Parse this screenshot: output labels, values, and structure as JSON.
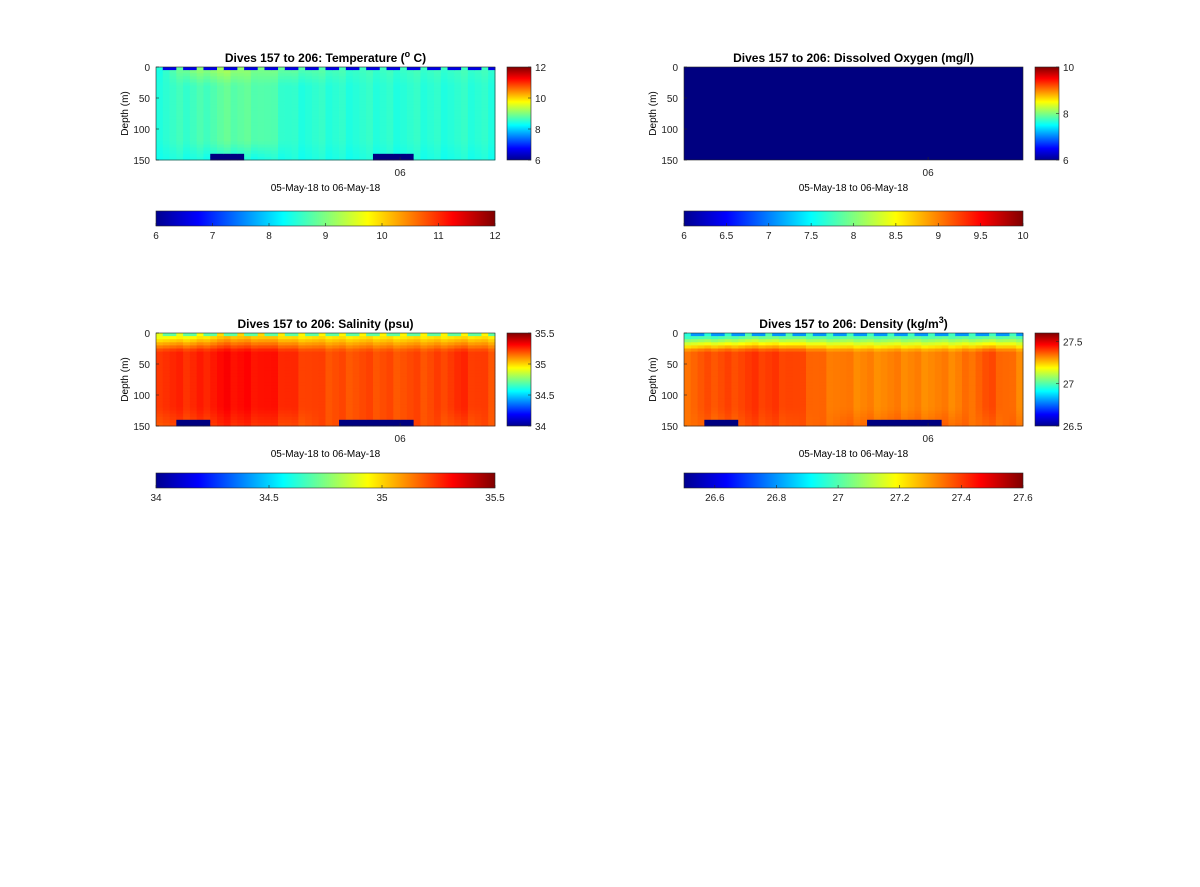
{
  "chart_data": [
    {
      "type": "heatmap",
      "title": "Dives 157 to 206: Temperature (",
      "title_sup": "o",
      "title_end": " C)",
      "ylabel": "Depth (m)",
      "xlabel": "05-May-18 to 06-May-18",
      "x_tick_labels": [
        "06"
      ],
      "y_ticks": [
        0,
        50,
        100,
        150
      ],
      "ylim": [
        150,
        0
      ],
      "clim": [
        6,
        12
      ],
      "side_colorbar_ticks": [
        6,
        8,
        10,
        12
      ],
      "horizontal_colorbar_ticks": [
        "6",
        "7",
        "8",
        "9",
        "10",
        "11",
        "12"
      ],
      "colormap": "jet",
      "surface_value": 6.6,
      "bottom_value": 6.0,
      "column_profiles": [
        {
          "x": 0.0,
          "top": 8.4,
          "mid": 8.5,
          "bottom": 8.4,
          "bottom_depth": 153
        },
        {
          "x": 0.1,
          "top": 9.0,
          "mid": 8.6,
          "bottom": 8.4,
          "bottom_depth": 153
        },
        {
          "x": 0.2,
          "top": 9.2,
          "mid": 8.8,
          "bottom": 8.4,
          "bottom_depth": 140
        },
        {
          "x": 0.3,
          "top": 9.0,
          "mid": 8.8,
          "bottom": 8.4,
          "bottom_depth": 153
        },
        {
          "x": 0.4,
          "top": 8.8,
          "mid": 8.5,
          "bottom": 8.4,
          "bottom_depth": 153
        },
        {
          "x": 0.5,
          "top": 8.7,
          "mid": 8.5,
          "bottom": 8.4,
          "bottom_depth": 153
        },
        {
          "x": 0.6,
          "top": 8.6,
          "mid": 8.5,
          "bottom": 8.4,
          "bottom_depth": 146
        },
        {
          "x": 0.7,
          "top": 8.6,
          "mid": 8.5,
          "bottom": 8.4,
          "bottom_depth": 140
        },
        {
          "x": 0.8,
          "top": 8.6,
          "mid": 8.5,
          "bottom": 8.4,
          "bottom_depth": 153
        },
        {
          "x": 0.9,
          "top": 8.6,
          "mid": 8.5,
          "bottom": 8.4,
          "bottom_depth": 146
        },
        {
          "x": 1.0,
          "top": 8.6,
          "mid": 8.5,
          "bottom": 8.4,
          "bottom_depth": 153
        }
      ]
    },
    {
      "type": "heatmap",
      "title": "Dives 157 to 206: Dissolved Oxygen (mg/l)",
      "ylabel": "Depth (m)",
      "xlabel": "05-May-18 to 06-May-18",
      "x_tick_labels": [
        "06"
      ],
      "y_ticks": [
        0,
        50,
        100,
        150
      ],
      "ylim": [
        150,
        0
      ],
      "clim": [
        6,
        10
      ],
      "side_colorbar_ticks": [
        6,
        8,
        10
      ],
      "horizontal_colorbar_ticks": [
        "6",
        "6.5",
        "7",
        "7.5",
        "8",
        "8.5",
        "9",
        "9.5",
        "10"
      ],
      "colormap": "jet",
      "uniform_value": 6
    },
    {
      "type": "heatmap",
      "title": "Dives 157 to 206: Salinity (psu)",
      "ylabel": "Depth (m)",
      "xlabel": "05-May-18 to 06-May-18",
      "x_tick_labels": [
        "06"
      ],
      "y_ticks": [
        0,
        50,
        100,
        150
      ],
      "ylim": [
        150,
        0
      ],
      "clim": [
        34,
        35.5
      ],
      "side_colorbar_ticks": [
        "34",
        "34.5",
        "35",
        "35.5"
      ],
      "horizontal_colorbar_ticks": [
        "34",
        "34.5",
        "35",
        "35.5"
      ],
      "colormap": "jet",
      "surface_value": 34.7,
      "bottom_value": 34.0,
      "column_profiles": [
        {
          "x": 0.0,
          "top": 34.9,
          "mid": 35.25,
          "bottom": 35.2,
          "bottom_depth": 153
        },
        {
          "x": 0.1,
          "top": 34.9,
          "mid": 35.25,
          "bottom": 35.2,
          "bottom_depth": 140
        },
        {
          "x": 0.2,
          "top": 35.0,
          "mid": 35.3,
          "bottom": 35.25,
          "bottom_depth": 146
        },
        {
          "x": 0.3,
          "top": 35.0,
          "mid": 35.3,
          "bottom": 35.25,
          "bottom_depth": 146
        },
        {
          "x": 0.4,
          "top": 34.95,
          "mid": 35.25,
          "bottom": 35.2,
          "bottom_depth": 153
        },
        {
          "x": 0.5,
          "top": 34.95,
          "mid": 35.2,
          "bottom": 35.2,
          "bottom_depth": 146
        },
        {
          "x": 0.6,
          "top": 34.95,
          "mid": 35.2,
          "bottom": 35.2,
          "bottom_depth": 140
        },
        {
          "x": 0.7,
          "top": 34.95,
          "mid": 35.2,
          "bottom": 35.2,
          "bottom_depth": 140
        },
        {
          "x": 0.8,
          "top": 34.95,
          "mid": 35.2,
          "bottom": 35.2,
          "bottom_depth": 146
        },
        {
          "x": 0.9,
          "top": 34.95,
          "mid": 35.25,
          "bottom": 35.2,
          "bottom_depth": 146
        },
        {
          "x": 1.0,
          "top": 34.95,
          "mid": 35.2,
          "bottom": 35.2,
          "bottom_depth": 146
        }
      ]
    },
    {
      "type": "heatmap",
      "title": "Dives 157 to 206: Density (kg/m",
      "title_sup": "3",
      "title_end": ")",
      "ylabel": "Depth (m)",
      "xlabel": "05-May-18 to 06-May-18",
      "x_tick_labels": [
        "06"
      ],
      "y_ticks": [
        0,
        50,
        100,
        150
      ],
      "ylim": [
        150,
        0
      ],
      "clim": [
        26.5,
        27.6
      ],
      "side_colorbar_ticks": [
        "26.5",
        "27",
        "27.5"
      ],
      "horizontal_colorbar_ticks": [
        "26.6",
        "26.8",
        "27",
        "27.2",
        "27.4",
        "27.6"
      ],
      "colormap": "jet",
      "surface_value": 26.8,
      "bottom_value": 26.5,
      "column_profiles": [
        {
          "x": 0.0,
          "top": 26.95,
          "mid": 27.35,
          "bottom": 27.35,
          "bottom_depth": 153
        },
        {
          "x": 0.1,
          "top": 26.95,
          "mid": 27.38,
          "bottom": 27.35,
          "bottom_depth": 140
        },
        {
          "x": 0.2,
          "top": 27.0,
          "mid": 27.4,
          "bottom": 27.38,
          "bottom_depth": 146
        },
        {
          "x": 0.3,
          "top": 27.0,
          "mid": 27.4,
          "bottom": 27.38,
          "bottom_depth": 146
        },
        {
          "x": 0.4,
          "top": 26.98,
          "mid": 27.35,
          "bottom": 27.35,
          "bottom_depth": 153
        },
        {
          "x": 0.5,
          "top": 26.98,
          "mid": 27.32,
          "bottom": 27.35,
          "bottom_depth": 146
        },
        {
          "x": 0.6,
          "top": 26.98,
          "mid": 27.32,
          "bottom": 27.35,
          "bottom_depth": 140
        },
        {
          "x": 0.7,
          "top": 26.98,
          "mid": 27.32,
          "bottom": 27.35,
          "bottom_depth": 140
        },
        {
          "x": 0.8,
          "top": 26.98,
          "mid": 27.32,
          "bottom": 27.35,
          "bottom_depth": 146
        },
        {
          "x": 0.9,
          "top": 26.98,
          "mid": 27.38,
          "bottom": 27.35,
          "bottom_depth": 146
        },
        {
          "x": 1.0,
          "top": 26.98,
          "mid": 27.32,
          "bottom": 27.35,
          "bottom_depth": 146
        }
      ]
    }
  ]
}
